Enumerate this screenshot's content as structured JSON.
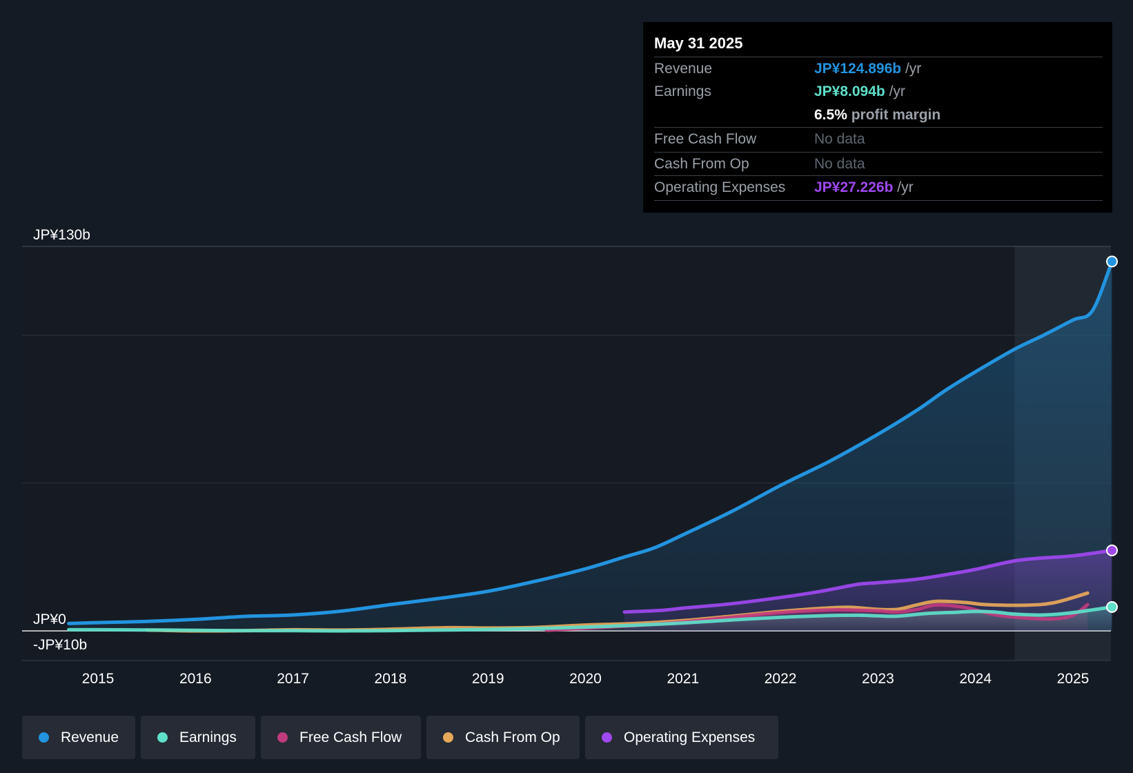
{
  "chart_data": {
    "type": "area",
    "title": "",
    "xlabel": "",
    "ylabel": "",
    "currency_prefix": "JP¥",
    "ylim": [
      -10,
      130
    ],
    "y_tick_labels": [
      {
        "value": 130,
        "label": "JP¥130b"
      },
      {
        "value": 0,
        "label": "JP¥0"
      },
      {
        "value": -10,
        "label": "-JP¥10b"
      }
    ],
    "x_ticks": [
      2015,
      2016,
      2017,
      2018,
      2019,
      2020,
      2021,
      2022,
      2023,
      2024,
      2025
    ],
    "xlim": [
      2014.2,
      2025.4
    ],
    "highlight_range": [
      2024.4,
      2025.4
    ],
    "series": [
      {
        "name": "Revenue",
        "color": "#2394df",
        "filled": true,
        "endpoint_marker": true,
        "points": [
          [
            2014.7,
            2.5
          ],
          [
            2015.0,
            2.8
          ],
          [
            2015.5,
            3.2
          ],
          [
            2016.0,
            3.9
          ],
          [
            2016.5,
            4.9
          ],
          [
            2017.0,
            5.4
          ],
          [
            2017.5,
            6.7
          ],
          [
            2018.0,
            8.9
          ],
          [
            2018.5,
            11.0
          ],
          [
            2019.0,
            13.4
          ],
          [
            2019.5,
            16.9
          ],
          [
            2020.0,
            21.0
          ],
          [
            2020.4,
            25.0
          ],
          [
            2020.7,
            28.0
          ],
          [
            2021.0,
            32.5
          ],
          [
            2021.5,
            40.4
          ],
          [
            2022.0,
            49.2
          ],
          [
            2022.5,
            57.3
          ],
          [
            2023.0,
            66.5
          ],
          [
            2023.4,
            74.6
          ],
          [
            2023.7,
            81.5
          ],
          [
            2024.0,
            87.6
          ],
          [
            2024.4,
            95.2
          ],
          [
            2024.7,
            100.0
          ],
          [
            2025.0,
            105.1
          ],
          [
            2025.2,
            108.3
          ],
          [
            2025.4,
            124.896
          ]
        ]
      },
      {
        "name": "Operating Expenses",
        "color": "#9f48f0",
        "filled": true,
        "endpoint_marker": true,
        "points": [
          [
            2020.4,
            6.4
          ],
          [
            2020.8,
            7.0
          ],
          [
            2021.0,
            7.7
          ],
          [
            2021.5,
            9.2
          ],
          [
            2022.0,
            11.3
          ],
          [
            2022.4,
            13.3
          ],
          [
            2022.8,
            15.8
          ],
          [
            2023.0,
            16.3
          ],
          [
            2023.4,
            17.5
          ],
          [
            2023.8,
            19.6
          ],
          [
            2024.0,
            20.8
          ],
          [
            2024.4,
            23.7
          ],
          [
            2024.7,
            24.7
          ],
          [
            2025.0,
            25.4
          ],
          [
            2025.4,
            27.226
          ]
        ]
      },
      {
        "name": "Cash From Op",
        "color": "#e8a85a",
        "filled": false,
        "endpoint_marker": false,
        "points": [
          [
            2015.5,
            0.3
          ],
          [
            2016.0,
            0.0
          ],
          [
            2016.5,
            0.1
          ],
          [
            2017.0,
            0.4
          ],
          [
            2017.5,
            0.3
          ],
          [
            2018.0,
            0.6
          ],
          [
            2018.6,
            1.1
          ],
          [
            2019.0,
            1.0
          ],
          [
            2019.5,
            1.2
          ],
          [
            2020.0,
            2.0
          ],
          [
            2020.5,
            2.5
          ],
          [
            2021.0,
            3.5
          ],
          [
            2021.5,
            5.0
          ],
          [
            2022.0,
            6.6
          ],
          [
            2022.4,
            7.6
          ],
          [
            2022.7,
            8.0
          ],
          [
            2023.0,
            7.3
          ],
          [
            2023.2,
            7.3
          ],
          [
            2023.4,
            8.8
          ],
          [
            2023.6,
            10.0
          ],
          [
            2023.9,
            9.6
          ],
          [
            2024.1,
            8.9
          ],
          [
            2024.5,
            8.7
          ],
          [
            2024.8,
            9.5
          ],
          [
            2025.15,
            12.8
          ]
        ]
      },
      {
        "name": "Free Cash Flow",
        "color": "#c03b7e",
        "filled": true,
        "endpoint_marker": false,
        "points": [
          [
            2019.6,
            0.2
          ],
          [
            2020.0,
            0.9
          ],
          [
            2020.5,
            1.8
          ],
          [
            2021.0,
            3.0
          ],
          [
            2021.5,
            4.6
          ],
          [
            2022.0,
            6.2
          ],
          [
            2022.5,
            7.1
          ],
          [
            2022.8,
            7.0
          ],
          [
            2023.0,
            6.8
          ],
          [
            2023.2,
            6.4
          ],
          [
            2023.4,
            7.3
          ],
          [
            2023.6,
            8.8
          ],
          [
            2023.9,
            7.9
          ],
          [
            2024.2,
            5.5
          ],
          [
            2024.5,
            4.4
          ],
          [
            2024.8,
            4.1
          ],
          [
            2025.0,
            5.3
          ],
          [
            2025.15,
            8.9
          ]
        ]
      },
      {
        "name": "Earnings",
        "color": "#5edfca",
        "filled": true,
        "endpoint_marker": true,
        "points": [
          [
            2014.7,
            0.4
          ],
          [
            2015.0,
            0.4
          ],
          [
            2015.7,
            0.3
          ],
          [
            2016.0,
            0.2
          ],
          [
            2016.5,
            0.1
          ],
          [
            2017.0,
            0.1
          ],
          [
            2017.5,
            0.0
          ],
          [
            2018.0,
            0.1
          ],
          [
            2018.5,
            0.3
          ],
          [
            2019.0,
            0.5
          ],
          [
            2019.5,
            0.8
          ],
          [
            2020.0,
            1.3
          ],
          [
            2020.5,
            1.9
          ],
          [
            2021.0,
            2.7
          ],
          [
            2021.5,
            3.7
          ],
          [
            2022.0,
            4.6
          ],
          [
            2022.5,
            5.2
          ],
          [
            2022.8,
            5.3
          ],
          [
            2023.0,
            5.1
          ],
          [
            2023.2,
            5.0
          ],
          [
            2023.5,
            5.9
          ],
          [
            2023.8,
            6.3
          ],
          [
            2024.0,
            6.6
          ],
          [
            2024.2,
            6.4
          ],
          [
            2024.4,
            5.7
          ],
          [
            2024.7,
            5.4
          ],
          [
            2025.0,
            6.2
          ],
          [
            2025.4,
            8.094
          ]
        ]
      }
    ],
    "tooltip": {
      "date": "May 31 2025",
      "revenue_label": "Revenue",
      "revenue_value": "JP¥124.896b",
      "revenue_unit": "/yr",
      "earnings_label": "Earnings",
      "earnings_value": "JP¥8.094b",
      "earnings_unit": "/yr",
      "margin_value": "6.5%",
      "margin_text": "profit margin",
      "fcf_label": "Free Cash Flow",
      "fcf_value": "No data",
      "cfo_label": "Cash From Op",
      "cfo_value": "No data",
      "opex_label": "Operating Expenses",
      "opex_value": "JP¥27.226b",
      "opex_unit": "/yr"
    },
    "legend": [
      {
        "label": "Revenue",
        "color": "#2394df"
      },
      {
        "label": "Earnings",
        "color": "#5edfca"
      },
      {
        "label": "Free Cash Flow",
        "color": "#c03b7e"
      },
      {
        "label": "Cash From Op",
        "color": "#e8a85a"
      },
      {
        "label": "Operating Expenses",
        "color": "#9f48f0"
      }
    ]
  }
}
